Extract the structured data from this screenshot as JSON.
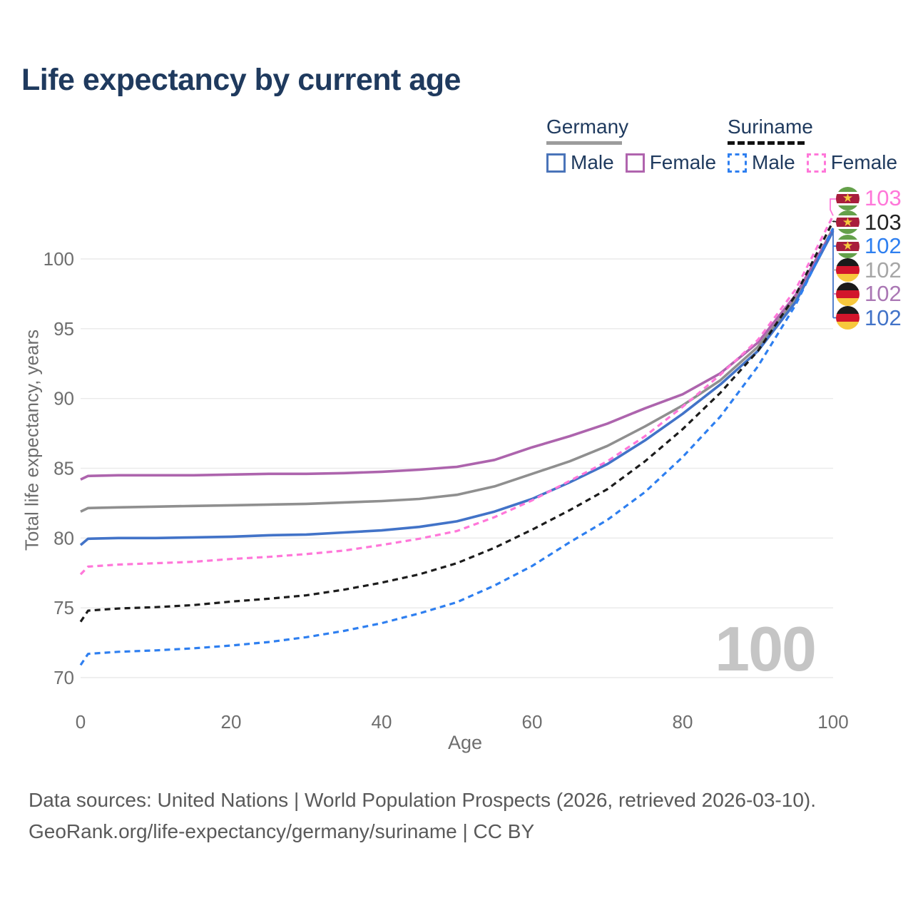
{
  "title": "Life expectancy by current age",
  "legend": {
    "germany": {
      "label": "Germany",
      "male": "Male",
      "female": "Female"
    },
    "suriname": {
      "label": "Suriname",
      "male": "Male",
      "female": "Female"
    }
  },
  "watermark": "100",
  "end_labels": [
    {
      "flag": "suriname",
      "country": "Suriname",
      "value": "103",
      "color": "#ff77d9"
    },
    {
      "flag": "suriname",
      "country": "Suriname",
      "value": "103",
      "color": "#222222"
    },
    {
      "flag": "suriname",
      "country": "Suriname",
      "value": "102",
      "color": "#2e7ff0"
    },
    {
      "flag": "germany",
      "country": "Germany",
      "value": "102",
      "color": "#a6a6a6"
    },
    {
      "flag": "germany",
      "country": "Germany",
      "value": "102",
      "color": "#aa77b4"
    },
    {
      "flag": "germany",
      "country": "Germany",
      "value": "102",
      "color": "#4273c8"
    }
  ],
  "footer": {
    "line1": "Data sources: United Nations | World Population Prospects (2026, retrieved 2026-03-10).",
    "line2": "GeoRank.org/life-expectancy/germany/suriname | CC BY"
  },
  "chart_data": {
    "type": "line",
    "title": "Life expectancy by current age",
    "xlabel": "Age",
    "ylabel": "Total life expectancy, years",
    "x_ticks": [
      0,
      20,
      40,
      60,
      80,
      100
    ],
    "y_ticks": [
      70,
      75,
      80,
      85,
      90,
      95,
      100
    ],
    "xlim": [
      0,
      100
    ],
    "ylim": [
      68.8,
      104.5
    ],
    "grid": "horizontal gridlines only",
    "legend_position": "top-right",
    "ages": [
      0,
      1,
      5,
      10,
      15,
      20,
      25,
      30,
      35,
      40,
      45,
      50,
      55,
      60,
      65,
      70,
      75,
      80,
      85,
      90,
      95,
      100
    ],
    "series": [
      {
        "name": "Germany (both sexes)",
        "slug": "germany-all",
        "style": "solid",
        "color": "#8f8f8f",
        "end_label": "102",
        "values": [
          81.9,
          82.15,
          82.2,
          82.25,
          82.3,
          82.35,
          82.4,
          82.45,
          82.55,
          82.65,
          82.8,
          83.1,
          83.7,
          84.6,
          85.5,
          86.6,
          88.0,
          89.5,
          91.3,
          93.7,
          97.1,
          102.2
        ]
      },
      {
        "name": "Germany Female",
        "slug": "germany-female",
        "style": "solid",
        "color": "#ad64ad",
        "end_label": "102",
        "values": [
          84.2,
          84.45,
          84.5,
          84.5,
          84.5,
          84.55,
          84.6,
          84.6,
          84.65,
          84.75,
          84.9,
          85.1,
          85.6,
          86.5,
          87.3,
          88.2,
          89.3,
          90.3,
          91.8,
          94.0,
          97.4,
          102.1
        ]
      },
      {
        "name": "Germany Male",
        "slug": "germany-male",
        "style": "solid",
        "color": "#4273c8",
        "end_label": "102",
        "values": [
          79.5,
          79.95,
          80.0,
          80.0,
          80.05,
          80.1,
          80.2,
          80.25,
          80.4,
          80.55,
          80.8,
          81.2,
          81.9,
          82.8,
          84.0,
          85.3,
          87.0,
          88.9,
          91.0,
          93.4,
          96.9,
          102.0
        ]
      },
      {
        "name": "Suriname (both sexes)",
        "slug": "suriname-all",
        "style": "dashed",
        "color": "#1c1c1c",
        "end_label": "103",
        "values": [
          74.0,
          74.8,
          74.95,
          75.05,
          75.2,
          75.45,
          75.65,
          75.9,
          76.3,
          76.8,
          77.4,
          78.2,
          79.3,
          80.6,
          82.0,
          83.5,
          85.5,
          87.8,
          90.4,
          93.4,
          97.4,
          102.7
        ]
      },
      {
        "name": "Suriname Male",
        "slug": "suriname-male",
        "style": "dashed",
        "color": "#2e7ff0",
        "end_label": "102",
        "values": [
          70.9,
          71.7,
          71.85,
          71.95,
          72.1,
          72.3,
          72.55,
          72.9,
          73.35,
          73.9,
          74.6,
          75.4,
          76.6,
          78.0,
          79.7,
          81.3,
          83.3,
          85.8,
          88.7,
          92.3,
          96.7,
          102.2
        ]
      },
      {
        "name": "Suriname Female",
        "slug": "suriname-female",
        "style": "dashed",
        "color": "#ff77d9",
        "end_label": "103",
        "values": [
          77.4,
          77.95,
          78.1,
          78.2,
          78.3,
          78.5,
          78.65,
          78.85,
          79.1,
          79.5,
          79.95,
          80.5,
          81.5,
          82.7,
          84.1,
          85.5,
          87.3,
          89.4,
          91.7,
          94.2,
          97.8,
          103.1
        ]
      }
    ]
  }
}
